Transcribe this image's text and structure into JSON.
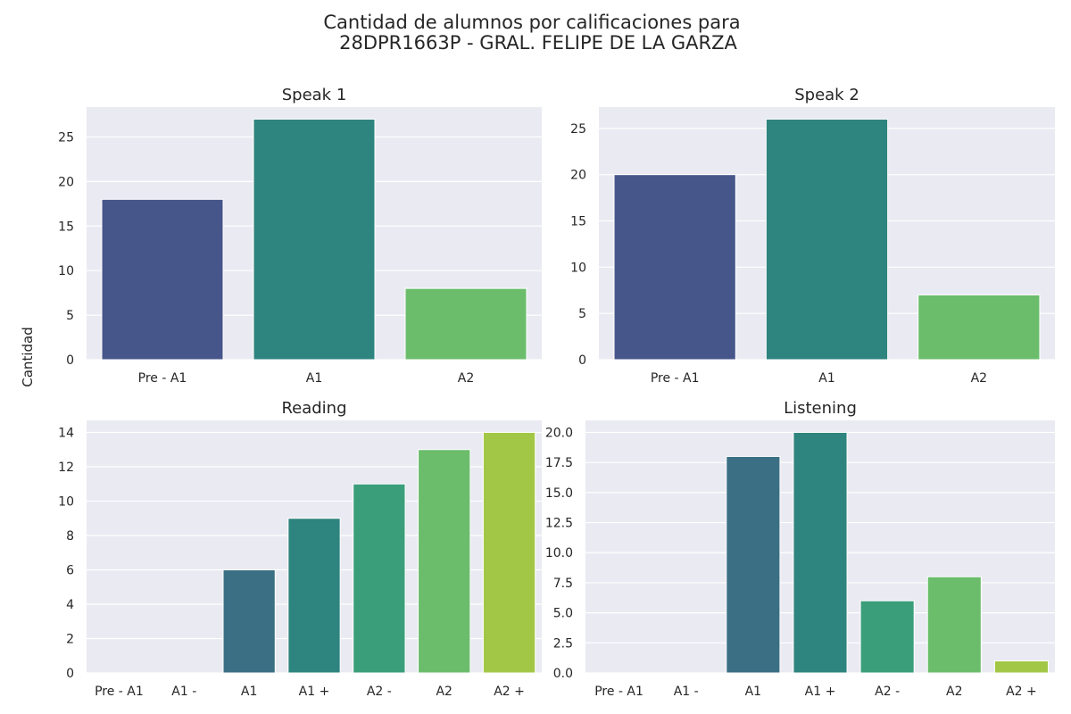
{
  "figure": {
    "title_line1": "Cantidad de alumnos por calificaciones para",
    "title_line2": "28DPR1663P - GRAL. FELIPE DE LA GARZA",
    "ylabel": "Cantidad"
  },
  "colors": {
    "background": "#eaeaf2",
    "grid": "#ffffff",
    "text": "#262626"
  },
  "chart_data": [
    {
      "type": "bar",
      "title": "Speak 1",
      "categories": [
        "Pre - A1",
        "A1",
        "A2"
      ],
      "values": [
        18,
        27,
        8
      ],
      "colors": [
        "#46568a",
        "#2e847e",
        "#6bbd6c"
      ],
      "ylim": [
        0,
        28.35
      ],
      "yticks": [
        0,
        5,
        10,
        15,
        20,
        25
      ],
      "ytick_labels": [
        "0",
        "5",
        "10",
        "15",
        "20",
        "25"
      ],
      "grid": true
    },
    {
      "type": "bar",
      "title": "Speak 2",
      "categories": [
        "Pre - A1",
        "A1",
        "A2"
      ],
      "values": [
        20,
        26,
        7
      ],
      "colors": [
        "#46568a",
        "#2e847e",
        "#6bbd6c"
      ],
      "ylim": [
        0,
        27.3
      ],
      "yticks": [
        0,
        5,
        10,
        15,
        20,
        25
      ],
      "ytick_labels": [
        "0",
        "5",
        "10",
        "15",
        "20",
        "25"
      ],
      "grid": true
    },
    {
      "type": "bar",
      "title": "Reading",
      "categories": [
        "Pre - A1",
        "A1 -",
        "A1",
        "A1 +",
        "A2 -",
        "A2",
        "A2 +"
      ],
      "values": [
        0,
        0,
        6,
        9,
        11,
        13,
        14
      ],
      "colors": [
        "#46568a",
        "#3f6a8a",
        "#3a6f84",
        "#2e847e",
        "#3a9e7a",
        "#6bbd6c",
        "#a2c746"
      ],
      "ylim": [
        0,
        14.7
      ],
      "yticks": [
        0,
        2,
        4,
        6,
        8,
        10,
        12,
        14
      ],
      "ytick_labels": [
        "0",
        "2",
        "4",
        "6",
        "8",
        "10",
        "12",
        "14"
      ],
      "grid": true
    },
    {
      "type": "bar",
      "title": "Listening",
      "categories": [
        "Pre - A1",
        "A1 -",
        "A1",
        "A1 +",
        "A2 -",
        "A2",
        "A2 +"
      ],
      "values": [
        0,
        0,
        18,
        20,
        6,
        8,
        1
      ],
      "colors": [
        "#46568a",
        "#3f6a8a",
        "#3a6f84",
        "#2e847e",
        "#3a9e7a",
        "#6bbd6c",
        "#a2c746"
      ],
      "ylim": [
        0,
        21
      ],
      "yticks": [
        0,
        2.5,
        5,
        7.5,
        10,
        12.5,
        15,
        17.5,
        20
      ],
      "ytick_labels": [
        "0.0",
        "2.5",
        "5.0",
        "7.5",
        "10.0",
        "12.5",
        "15.0",
        "17.5",
        "20.0"
      ],
      "grid": true
    }
  ]
}
